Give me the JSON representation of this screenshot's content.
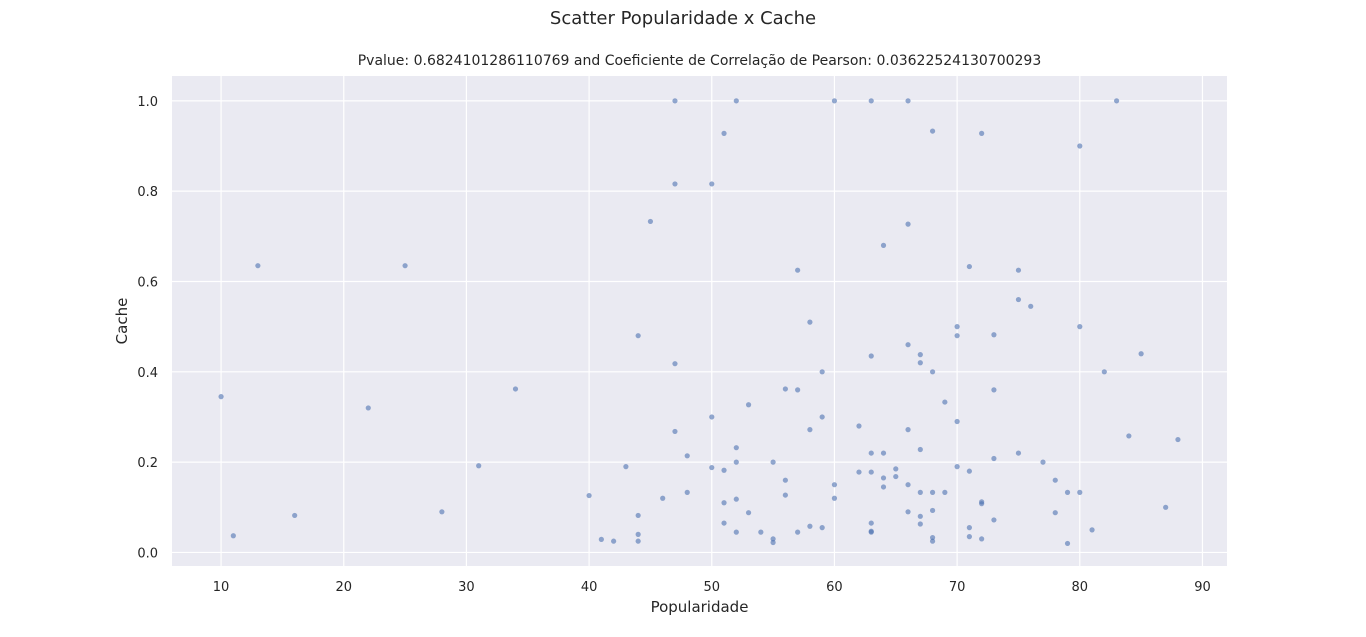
{
  "chart_data": {
    "type": "scatter",
    "title": "Scatter Popularidade x Cache",
    "subtitle": "Pvalue: 0.6824101286110769 and Coeficiente de Correlação de Pearson: 0.03622524130700293",
    "xlabel": "Popularidade",
    "ylabel": "Cache",
    "xlim": [
      6,
      92
    ],
    "ylim": [
      -0.03,
      1.055
    ],
    "xticks": [
      10,
      20,
      30,
      40,
      50,
      60,
      70,
      80,
      90
    ],
    "yticks": [
      0.0,
      0.2,
      0.4,
      0.6,
      0.8,
      1.0
    ],
    "ytick_labels": [
      "0.0",
      "0.2",
      "0.4",
      "0.6",
      "0.8",
      "1.0"
    ],
    "grid": true,
    "background": "#eaeaf2",
    "gridcolor": "#ffffff",
    "point_color": "#4c72b0",
    "points": [
      {
        "x": 10,
        "y": 0.345
      },
      {
        "x": 11,
        "y": 0.037
      },
      {
        "x": 13,
        "y": 0.635
      },
      {
        "x": 16,
        "y": 0.082
      },
      {
        "x": 22,
        "y": 0.32
      },
      {
        "x": 25,
        "y": 0.635
      },
      {
        "x": 28,
        "y": 0.09
      },
      {
        "x": 31,
        "y": 0.192
      },
      {
        "x": 34,
        "y": 0.362
      },
      {
        "x": 40,
        "y": 0.126
      },
      {
        "x": 41,
        "y": 0.029
      },
      {
        "x": 42,
        "y": 0.025
      },
      {
        "x": 43,
        "y": 0.19
      },
      {
        "x": 44,
        "y": 0.48
      },
      {
        "x": 44,
        "y": 0.082
      },
      {
        "x": 44,
        "y": 0.04
      },
      {
        "x": 44,
        "y": 0.025
      },
      {
        "x": 45,
        "y": 0.733
      },
      {
        "x": 46,
        "y": 0.12
      },
      {
        "x": 47,
        "y": 1.0
      },
      {
        "x": 47,
        "y": 0.816
      },
      {
        "x": 47,
        "y": 0.418
      },
      {
        "x": 47,
        "y": 0.268
      },
      {
        "x": 48,
        "y": 0.214
      },
      {
        "x": 48,
        "y": 0.133
      },
      {
        "x": 50,
        "y": 0.816
      },
      {
        "x": 50,
        "y": 0.3
      },
      {
        "x": 50,
        "y": 0.188
      },
      {
        "x": 51,
        "y": 0.928
      },
      {
        "x": 51,
        "y": 0.182
      },
      {
        "x": 51,
        "y": 0.11
      },
      {
        "x": 51,
        "y": 0.065
      },
      {
        "x": 52,
        "y": 1.0
      },
      {
        "x": 52,
        "y": 0.232
      },
      {
        "x": 52,
        "y": 0.2
      },
      {
        "x": 52,
        "y": 0.118
      },
      {
        "x": 52,
        "y": 0.045
      },
      {
        "x": 53,
        "y": 0.327
      },
      {
        "x": 53,
        "y": 0.088
      },
      {
        "x": 54,
        "y": 0.045
      },
      {
        "x": 55,
        "y": 0.2
      },
      {
        "x": 55,
        "y": 0.03
      },
      {
        "x": 55,
        "y": 0.022
      },
      {
        "x": 56,
        "y": 0.362
      },
      {
        "x": 56,
        "y": 0.16
      },
      {
        "x": 56,
        "y": 0.127
      },
      {
        "x": 57,
        "y": 0.625
      },
      {
        "x": 57,
        "y": 0.36
      },
      {
        "x": 57,
        "y": 0.045
      },
      {
        "x": 58,
        "y": 0.51
      },
      {
        "x": 58,
        "y": 0.272
      },
      {
        "x": 58,
        "y": 0.058
      },
      {
        "x": 59,
        "y": 0.4
      },
      {
        "x": 59,
        "y": 0.3
      },
      {
        "x": 59,
        "y": 0.055
      },
      {
        "x": 60,
        "y": 1.0
      },
      {
        "x": 60,
        "y": 0.15
      },
      {
        "x": 60,
        "y": 0.12
      },
      {
        "x": 62,
        "y": 0.28
      },
      {
        "x": 62,
        "y": 0.178
      },
      {
        "x": 63,
        "y": 1.0
      },
      {
        "x": 63,
        "y": 0.435
      },
      {
        "x": 63,
        "y": 0.22
      },
      {
        "x": 63,
        "y": 0.178
      },
      {
        "x": 63,
        "y": 0.065
      },
      {
        "x": 63,
        "y": 0.047
      },
      {
        "x": 63,
        "y": 0.045
      },
      {
        "x": 64,
        "y": 0.68
      },
      {
        "x": 64,
        "y": 0.22
      },
      {
        "x": 64,
        "y": 0.165
      },
      {
        "x": 64,
        "y": 0.145
      },
      {
        "x": 65,
        "y": 0.185
      },
      {
        "x": 65,
        "y": 0.168
      },
      {
        "x": 66,
        "y": 1.0
      },
      {
        "x": 66,
        "y": 0.727
      },
      {
        "x": 66,
        "y": 0.46
      },
      {
        "x": 66,
        "y": 0.272
      },
      {
        "x": 66,
        "y": 0.15
      },
      {
        "x": 66,
        "y": 0.09
      },
      {
        "x": 67,
        "y": 0.438
      },
      {
        "x": 67,
        "y": 0.42
      },
      {
        "x": 67,
        "y": 0.228
      },
      {
        "x": 67,
        "y": 0.133
      },
      {
        "x": 67,
        "y": 0.08
      },
      {
        "x": 67,
        "y": 0.063
      },
      {
        "x": 68,
        "y": 0.933
      },
      {
        "x": 68,
        "y": 0.4
      },
      {
        "x": 68,
        "y": 0.133
      },
      {
        "x": 68,
        "y": 0.093
      },
      {
        "x": 68,
        "y": 0.033
      },
      {
        "x": 68,
        "y": 0.025
      },
      {
        "x": 69,
        "y": 0.333
      },
      {
        "x": 69,
        "y": 0.133
      },
      {
        "x": 70,
        "y": 0.5
      },
      {
        "x": 70,
        "y": 0.48
      },
      {
        "x": 70,
        "y": 0.29
      },
      {
        "x": 70,
        "y": 0.19
      },
      {
        "x": 71,
        "y": 0.633
      },
      {
        "x": 71,
        "y": 0.18
      },
      {
        "x": 71,
        "y": 0.055
      },
      {
        "x": 71,
        "y": 0.035
      },
      {
        "x": 72,
        "y": 0.928
      },
      {
        "x": 72,
        "y": 0.112
      },
      {
        "x": 72,
        "y": 0.108
      },
      {
        "x": 72,
        "y": 0.03
      },
      {
        "x": 73,
        "y": 0.482
      },
      {
        "x": 73,
        "y": 0.36
      },
      {
        "x": 73,
        "y": 0.208
      },
      {
        "x": 73,
        "y": 0.072
      },
      {
        "x": 75,
        "y": 0.625
      },
      {
        "x": 75,
        "y": 0.56
      },
      {
        "x": 75,
        "y": 0.22
      },
      {
        "x": 76,
        "y": 0.545
      },
      {
        "x": 77,
        "y": 0.2
      },
      {
        "x": 78,
        "y": 0.16
      },
      {
        "x": 78,
        "y": 0.088
      },
      {
        "x": 79,
        "y": 0.133
      },
      {
        "x": 79,
        "y": 0.02
      },
      {
        "x": 80,
        "y": 0.9
      },
      {
        "x": 80,
        "y": 0.5
      },
      {
        "x": 80,
        "y": 0.133
      },
      {
        "x": 81,
        "y": 0.05
      },
      {
        "x": 82,
        "y": 0.4
      },
      {
        "x": 83,
        "y": 1.0
      },
      {
        "x": 84,
        "y": 0.258
      },
      {
        "x": 85,
        "y": 0.44
      },
      {
        "x": 87,
        "y": 0.1
      },
      {
        "x": 88,
        "y": 0.25
      }
    ]
  }
}
